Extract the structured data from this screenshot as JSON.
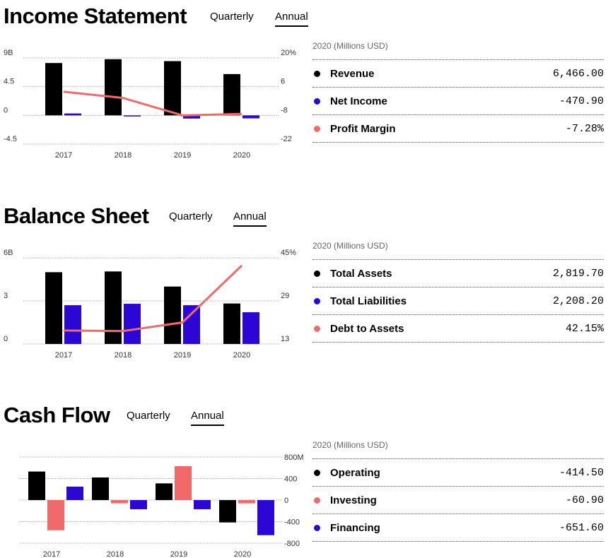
{
  "colors": {
    "primary": "#000000",
    "secondary": "#2b06d4",
    "accent": "#f06a6a"
  },
  "tabs": {
    "quarterly": "Quarterly",
    "annual": "Annual",
    "active": "Annual"
  },
  "income": {
    "title": "Income Statement",
    "table": {
      "header": "2020 (Millions USD)",
      "rows": [
        {
          "label": "Revenue",
          "value": "6,466.00",
          "color": "#000000"
        },
        {
          "label": "Net Income",
          "value": "-470.90",
          "color": "#2b06d4"
        },
        {
          "label": "Profit Margin",
          "value": "-7.28%",
          "color": "#f06a6a"
        }
      ]
    }
  },
  "balance": {
    "title": "Balance Sheet",
    "table": {
      "header": "2020 (Millions USD)",
      "rows": [
        {
          "label": "Total Assets",
          "value": "2,819.70",
          "color": "#000000"
        },
        {
          "label": "Total Liabilities",
          "value": "2,208.20",
          "color": "#2b06d4"
        },
        {
          "label": "Debt to Assets",
          "value": "42.15%",
          "color": "#f06a6a"
        }
      ]
    }
  },
  "cashflow": {
    "title": "Cash Flow",
    "table": {
      "header": "2020 (Millions USD)",
      "rows": [
        {
          "label": "Operating",
          "value": "-414.50",
          "color": "#000000"
        },
        {
          "label": "Investing",
          "value": "-60.90",
          "color": "#f06a6a"
        },
        {
          "label": "Financing",
          "value": "-651.60",
          "color": "#2b06d4"
        }
      ]
    }
  },
  "chart_data": [
    {
      "type": "bar",
      "categories": [
        "2017",
        "2018",
        "2019",
        "2020"
      ],
      "series": [
        {
          "name": "Revenue",
          "values": [
            8.2,
            8.8,
            8.5,
            6.47
          ],
          "color": "#000000"
        },
        {
          "name": "Net Income",
          "values": [
            0.3,
            -0.05,
            -0.5,
            -0.47
          ],
          "color": "#2b06d4"
        }
      ],
      "line": {
        "name": "Profit Margin",
        "values": [
          3.5,
          0.5,
          -8,
          -7.28
        ],
        "color": "#f06a6a"
      },
      "left_ticks": [
        "9B",
        "4.5",
        "0",
        "-4.5"
      ],
      "ylim": [
        -4.5,
        9
      ],
      "right_ticks": [
        "20%",
        "6",
        "-8",
        "-22"
      ],
      "y2lim": [
        -22,
        20
      ],
      "grid": true
    },
    {
      "type": "bar",
      "categories": [
        "2017",
        "2018",
        "2019",
        "2020"
      ],
      "series": [
        {
          "name": "Total Assets",
          "values": [
            5.0,
            5.05,
            4.0,
            2.82
          ],
          "color": "#000000"
        },
        {
          "name": "Total Liabilities",
          "values": [
            2.7,
            2.8,
            2.7,
            2.21
          ],
          "color": "#2b06d4"
        }
      ],
      "line": {
        "name": "Debt to Assets",
        "values": [
          18,
          17.8,
          21,
          42.15
        ],
        "color": "#f06a6a"
      },
      "left_ticks": [
        "6B",
        "3",
        "0"
      ],
      "ylim": [
        0,
        6
      ],
      "right_ticks": [
        "45%",
        "29",
        "13"
      ],
      "y2lim": [
        13,
        45
      ],
      "grid": true
    },
    {
      "type": "bar",
      "categories": [
        "2017",
        "2018",
        "2019",
        "2020"
      ],
      "series": [
        {
          "name": "Operating",
          "values": [
            530,
            420,
            310,
            -414.5
          ],
          "color": "#000000"
        },
        {
          "name": "Investing",
          "values": [
            -560,
            -60,
            630,
            -60.9
          ],
          "color": "#f06a6a"
        },
        {
          "name": "Financing",
          "values": [
            250,
            -170,
            -170,
            -651.6
          ],
          "color": "#2b06d4"
        }
      ],
      "right_ticks": [
        "800M",
        "400",
        "0",
        "-400",
        "-800"
      ],
      "ylim": [
        -800,
        800
      ],
      "grid": true
    }
  ]
}
